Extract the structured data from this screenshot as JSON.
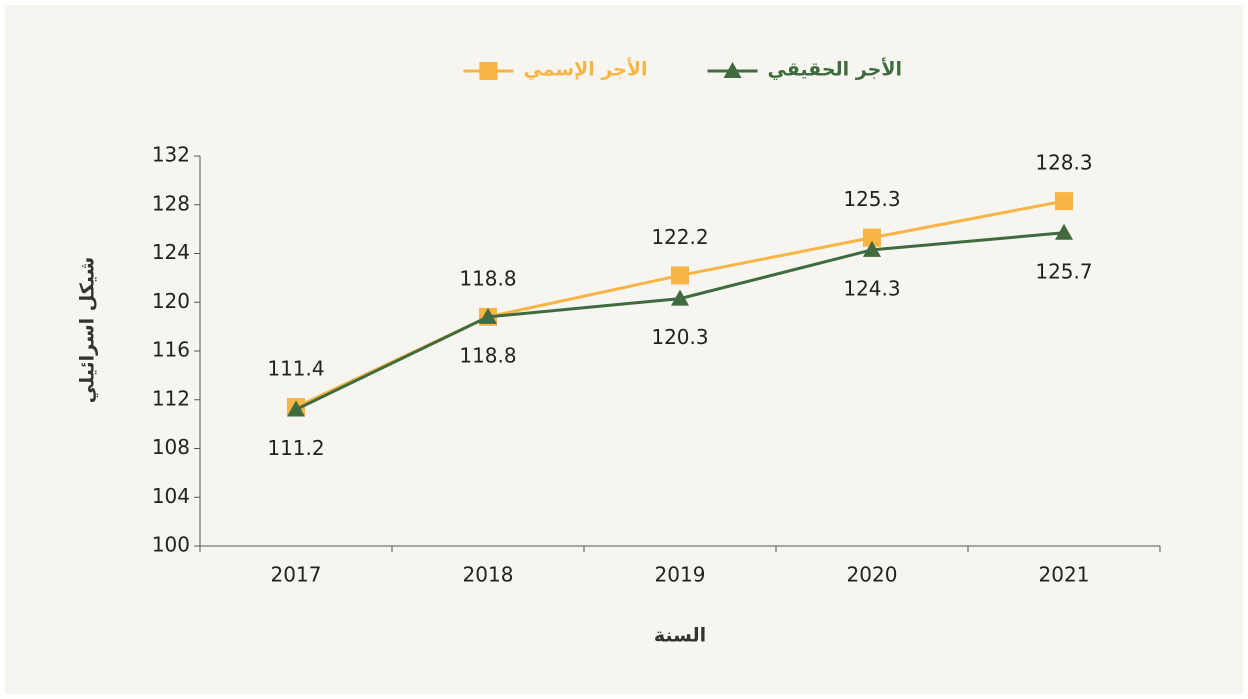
{
  "chart_data": {
    "type": "line",
    "xlabel": "السنة",
    "ylabel": "شيكل اسرائيلي",
    "categories": [
      "2017",
      "2018",
      "2019",
      "2020",
      "2021"
    ],
    "series": [
      {
        "name": "الأجر الحقيقي",
        "color": "#3f6b3f",
        "marker": "triangle",
        "values": [
          111.2,
          118.8,
          120.3,
          124.3,
          125.7
        ]
      },
      {
        "name": "الأجر الإسمي",
        "color": "#f8b444",
        "marker": "square",
        "values": [
          111.4,
          118.8,
          122.2,
          125.3,
          128.3
        ]
      }
    ],
    "ylim": [
      100,
      132
    ],
    "yticks": [
      100,
      104,
      108,
      112,
      116,
      120,
      124,
      128,
      132
    ],
    "grid": false,
    "legend": "top"
  }
}
